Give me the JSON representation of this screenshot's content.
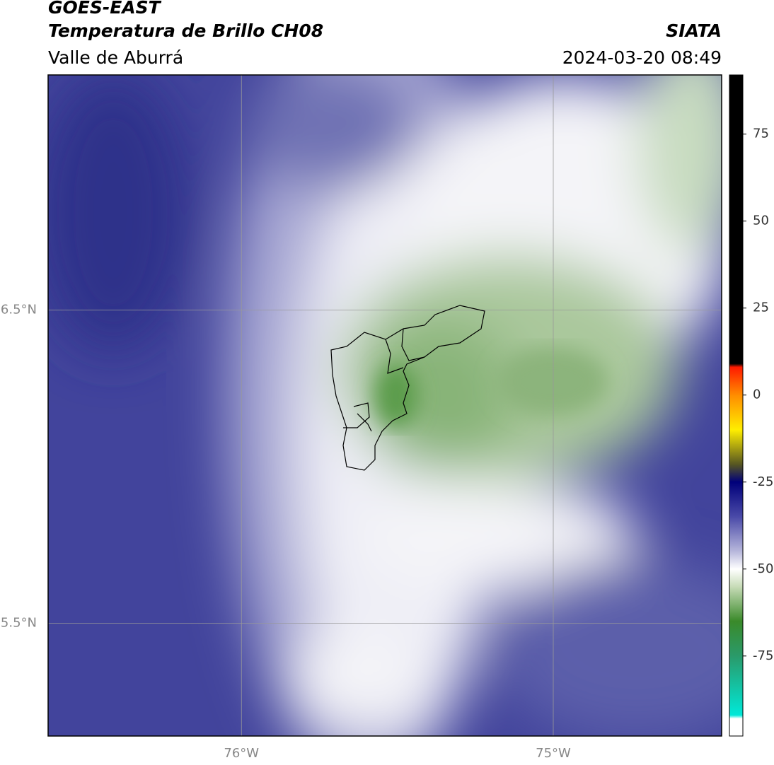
{
  "header": {
    "title": "GOES-EAST",
    "subtitle": "Temperatura de Brillo CH08",
    "region": "Valle de Aburrá",
    "source": "SIATA",
    "timestamp": "2024-03-20 08:49"
  },
  "map": {
    "xlim": [
      -76.62,
      -74.46
    ],
    "ylim": [
      5.14,
      7.25
    ],
    "xticks": [
      {
        "value": -76,
        "label": "76°W"
      },
      {
        "value": -75,
        "label": "75°W"
      }
    ],
    "yticks": [
      {
        "value": 6.5,
        "label": "6.5°N"
      },
      {
        "value": 5.5,
        "label": "5.5°N"
      }
    ],
    "grid": true
  },
  "colorbar": {
    "lim": [
      -98,
      92
    ],
    "ticks": [
      75,
      50,
      25,
      0,
      -25,
      -50,
      -75
    ],
    "stops": [
      {
        "value": 92,
        "color": "#000000"
      },
      {
        "value": 9,
        "color": "#000000"
      },
      {
        "value": 8,
        "color": "#ff1a00"
      },
      {
        "value": 0,
        "color": "#ff8c00"
      },
      {
        "value": -10,
        "color": "#ffee00"
      },
      {
        "value": -20,
        "color": "#555522"
      },
      {
        "value": -25,
        "color": "#00007a"
      },
      {
        "value": -35,
        "color": "#4a4aa8"
      },
      {
        "value": -45,
        "color": "#b8b8dc"
      },
      {
        "value": -50,
        "color": "#ffffff"
      },
      {
        "value": -55,
        "color": "#c8dcb8"
      },
      {
        "value": -65,
        "color": "#3a8a2a"
      },
      {
        "value": -75,
        "color": "#2a9a6a"
      },
      {
        "value": -92,
        "color": "#00e8d8"
      },
      {
        "value": -93,
        "color": "#ffffff"
      },
      {
        "value": -98,
        "color": "#ffffff"
      }
    ]
  }
}
